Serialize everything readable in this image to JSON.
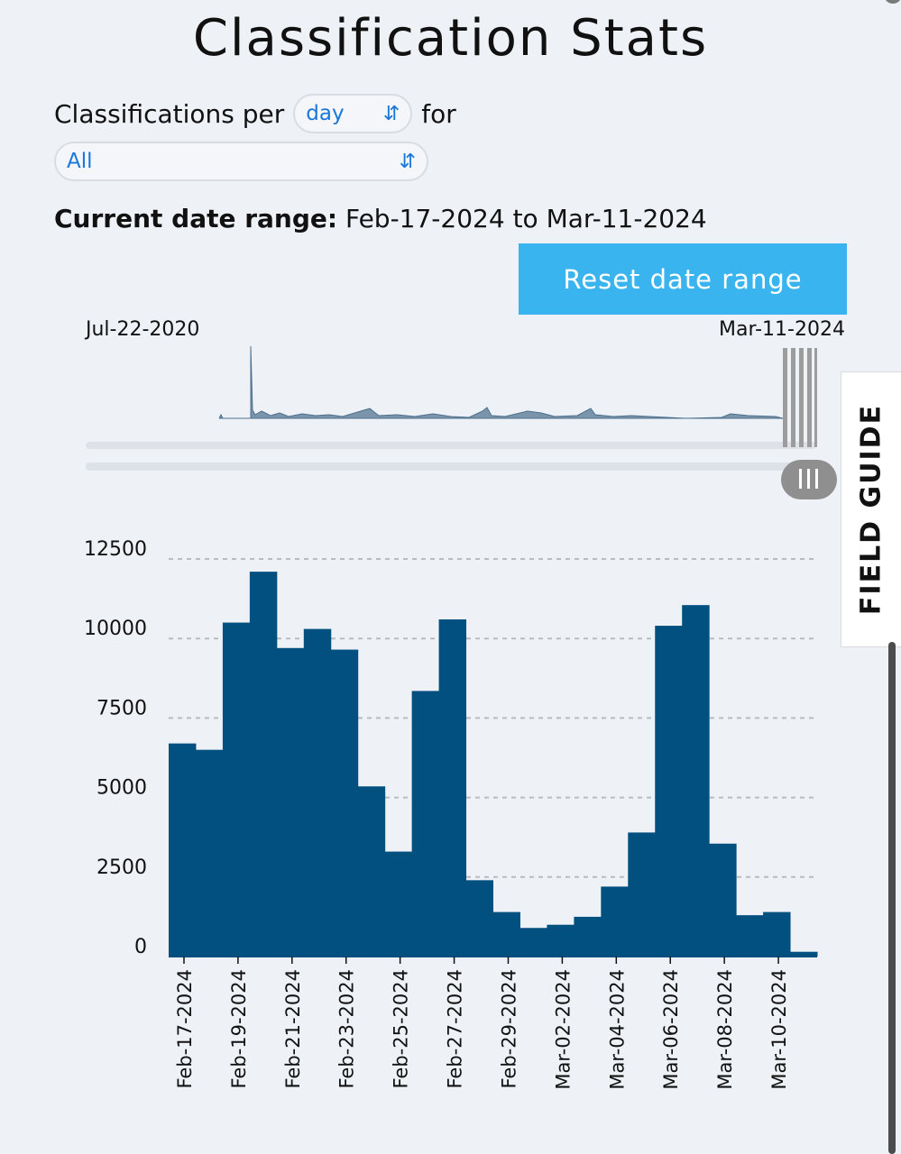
{
  "page": {
    "title": "Classification Stats",
    "per_label": "Classifications per",
    "period_select": "day",
    "for_label": "for",
    "workflow_select": "All",
    "range_label": "Current date range:",
    "range_value": "Feb-17-2024 to Mar-11-2024",
    "reset_button": "Reset date range",
    "brush_start": "Jul-22-2020",
    "brush_end": "Mar-11-2024",
    "field_guide": "FIELD GUIDE"
  },
  "chart_data": {
    "type": "bar",
    "y_ticks": [
      "12500",
      "10000",
      "7500",
      "5000",
      "2500",
      "0"
    ],
    "ylim": [
      0,
      12500
    ],
    "grid": true,
    "categories": [
      "Feb-17-2024",
      "Feb-18-2024",
      "Feb-19-2024",
      "Feb-20-2024",
      "Feb-21-2024",
      "Feb-22-2024",
      "Feb-23-2024",
      "Feb-24-2024",
      "Feb-25-2024",
      "Feb-26-2024",
      "Feb-27-2024",
      "Feb-28-2024",
      "Feb-29-2024",
      "Mar-01-2024",
      "Mar-02-2024",
      "Mar-03-2024",
      "Mar-04-2024",
      "Mar-05-2024",
      "Mar-06-2024",
      "Mar-07-2024",
      "Mar-08-2024",
      "Mar-09-2024",
      "Mar-10-2024",
      "Mar-11-2024"
    ],
    "x_tick_labels": [
      "Feb-17-2024",
      "Feb-19-2024",
      "Feb-21-2024",
      "Feb-23-2024",
      "Feb-25-2024",
      "Feb-27-2024",
      "Feb-29-2024",
      "Mar-02-2024",
      "Mar-04-2024",
      "Mar-06-2024",
      "Mar-08-2024",
      "Mar-10-2024"
    ],
    "values": [
      6700,
      6500,
      10500,
      12100,
      9700,
      10300,
      9650,
      5350,
      3300,
      8350,
      10600,
      2400,
      1400,
      900,
      1000,
      1250,
      2200,
      3900,
      10400,
      11050,
      3550,
      1300,
      1400,
      150
    ],
    "bar_color": "#02507f"
  }
}
